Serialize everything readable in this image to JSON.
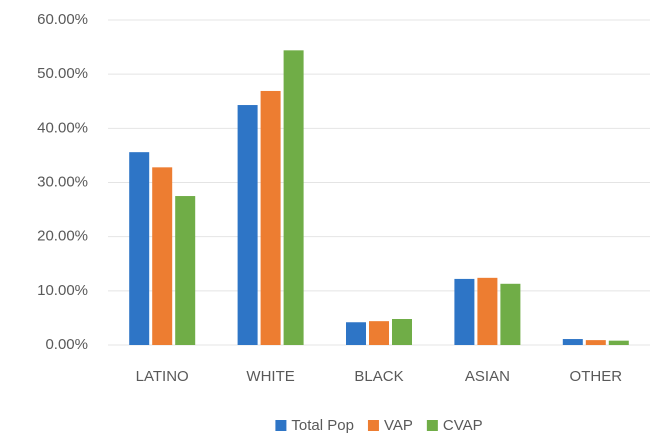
{
  "chart_data": {
    "type": "bar",
    "categories": [
      "LATINO",
      "WHITE",
      "BLACK",
      "ASIAN",
      "OTHER"
    ],
    "series": [
      {
        "name": "Total Pop",
        "color": "#2e75c6",
        "values": [
          35.6,
          44.3,
          4.2,
          12.2,
          1.1
        ]
      },
      {
        "name": "VAP",
        "color": "#ed7d31",
        "values": [
          32.8,
          46.9,
          4.4,
          12.4,
          0.9
        ]
      },
      {
        "name": "CVAP",
        "color": "#70ad47",
        "values": [
          27.5,
          54.4,
          4.8,
          11.3,
          0.8
        ]
      }
    ],
    "ylim": [
      0,
      60
    ],
    "yticks": [
      {
        "value": 0,
        "label": "0.00%"
      },
      {
        "value": 10,
        "label": "10.00%"
      },
      {
        "value": 20,
        "label": "20.00%"
      },
      {
        "value": 30,
        "label": "30.00%"
      },
      {
        "value": 40,
        "label": "40.00%"
      },
      {
        "value": 50,
        "label": "50.00%"
      },
      {
        "value": 60,
        "label": "60.00%"
      }
    ],
    "grid": true,
    "legend": "bottom"
  }
}
